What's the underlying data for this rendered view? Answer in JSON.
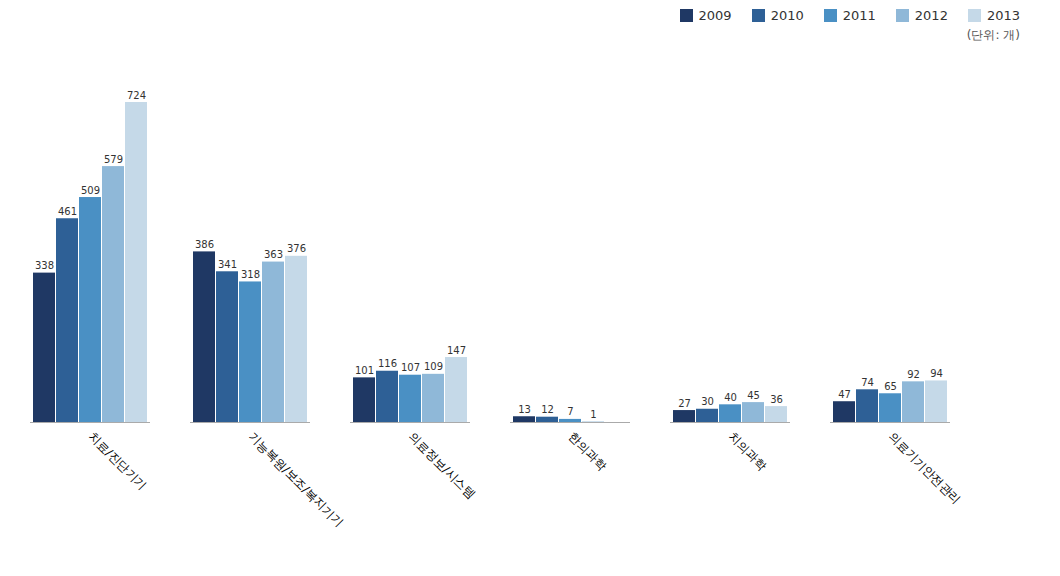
{
  "chart_data": {
    "type": "bar",
    "categories": [
      "치료/진단기기",
      "기능복원/보조/복지기기",
      "의료정보/시스템",
      "한의과학",
      "치의과학",
      "의료기기안전관리"
    ],
    "series": [
      {
        "name": "2009",
        "color": "#1f3864",
        "values": [
          338,
          386,
          101,
          13,
          27,
          47
        ]
      },
      {
        "name": "2010",
        "color": "#2e6096",
        "values": [
          461,
          341,
          116,
          12,
          30,
          74
        ]
      },
      {
        "name": "2011",
        "color": "#4a90c4",
        "values": [
          509,
          318,
          107,
          7,
          40,
          65
        ]
      },
      {
        "name": "2012",
        "color": "#8fb8d8",
        "values": [
          579,
          363,
          109,
          1,
          45,
          92
        ]
      },
      {
        "name": "2013",
        "color": "#c5d9e8",
        "values": [
          724,
          376,
          147,
          0,
          36,
          94
        ]
      }
    ],
    "annotations": [
      "(단위: 개)"
    ],
    "ylim": [
      0,
      810
    ],
    "legend": "upper right",
    "data_labels": true,
    "tick_labels": "x",
    "grid": false
  }
}
